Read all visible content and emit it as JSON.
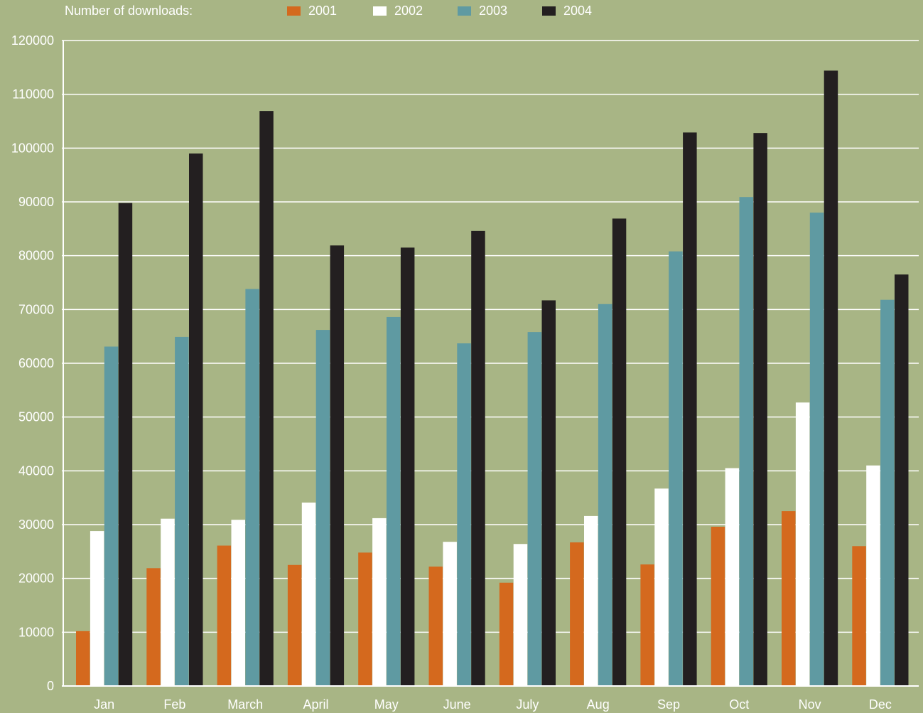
{
  "chart_data": {
    "type": "bar",
    "title": "Number of downloads:",
    "categories": [
      "Jan",
      "Feb",
      "March",
      "April",
      "May",
      "June",
      "July",
      "Aug",
      "Sep",
      "Oct",
      "Nov",
      "Dec"
    ],
    "series": [
      {
        "name": "2001",
        "color": "#d4691e",
        "values": [
          10200,
          21900,
          26100,
          22500,
          24800,
          22200,
          19200,
          26700,
          22600,
          29600,
          32500,
          26000
        ]
      },
      {
        "name": "2002",
        "color": "#ffffff",
        "values": [
          28800,
          31100,
          30900,
          34100,
          31200,
          26800,
          26400,
          31600,
          36700,
          40500,
          52700,
          41000
        ]
      },
      {
        "name": "2003",
        "color": "#5f9aa2",
        "values": [
          63100,
          64900,
          73800,
          66200,
          68600,
          63700,
          65800,
          71000,
          80800,
          90900,
          88000,
          71800
        ]
      },
      {
        "name": "2004",
        "color": "#231f20",
        "values": [
          89800,
          99000,
          106900,
          81900,
          81500,
          84600,
          71700,
          86900,
          102900,
          102800,
          114400,
          76500
        ]
      }
    ],
    "yticks": [
      "0",
      "10000",
      "20000",
      "30000",
      "40000",
      "50000",
      "60000",
      "70000",
      "80000",
      "90000",
      "100000",
      "110000",
      "120000"
    ],
    "ylim": [
      0,
      120000
    ],
    "grid": true,
    "legend_position": "top"
  }
}
